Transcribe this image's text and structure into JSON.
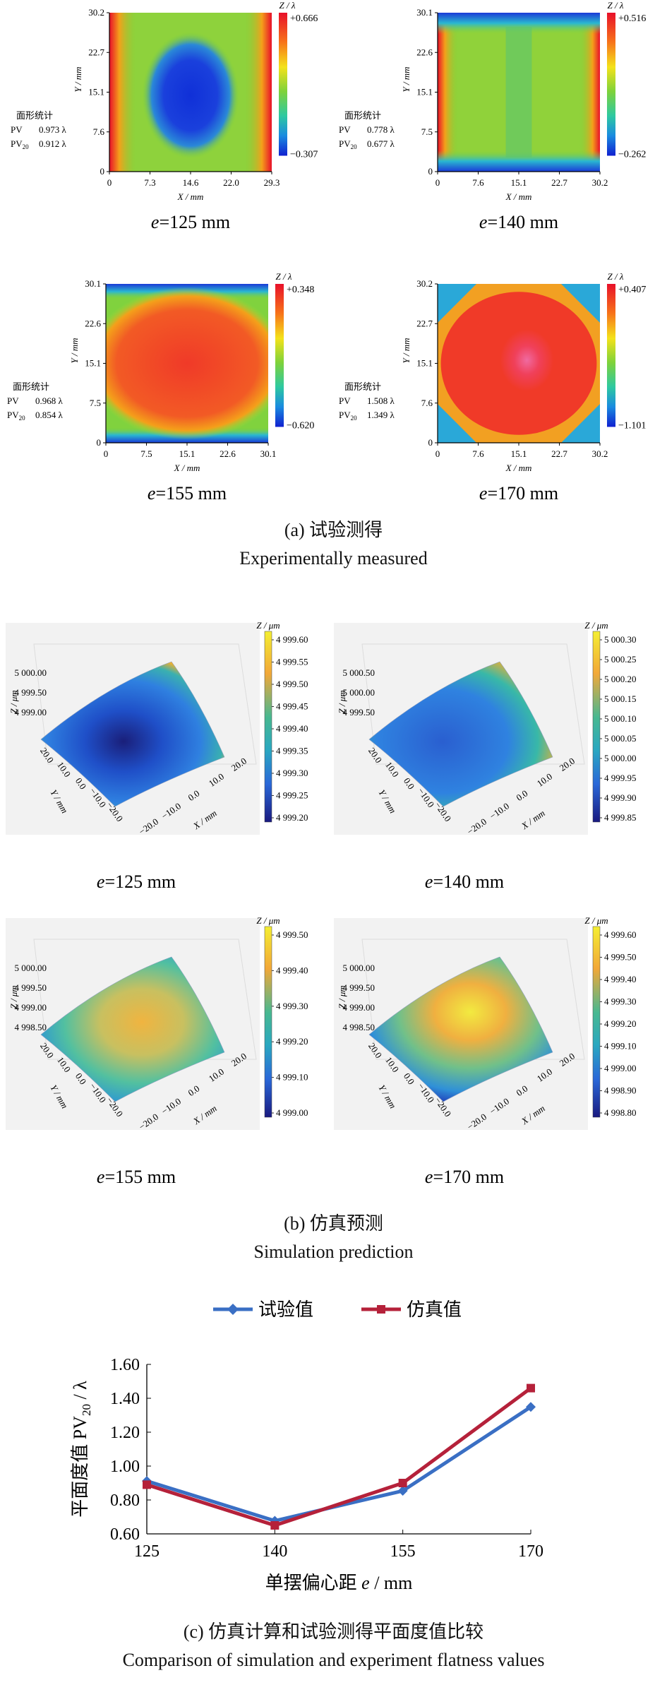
{
  "section_a": {
    "caption_zh": "(a) 试验测得",
    "caption_en": "Experimentally measured",
    "zlabel": "Z / λ",
    "xlabel": "X / mm",
    "ylabel": "Y / mm",
    "stats_title": "面形统计",
    "maps": [
      {
        "e_label": "e=125 mm",
        "zmax": "+0.666",
        "zmin": "−0.307",
        "xticks": [
          "0",
          "7.3",
          "14.6",
          "22.0",
          "29.3"
        ],
        "yticks": [
          "0",
          "7.6",
          "15.1",
          "22.7",
          "30.2"
        ],
        "pv": "0.973 λ",
        "pv20": "0.912 λ",
        "pattern": "center-low"
      },
      {
        "e_label": "e=140 mm",
        "zmax": "+0.516",
        "zmin": "−0.262",
        "xticks": [
          "0",
          "7.6",
          "15.1",
          "22.7",
          "30.2"
        ],
        "yticks": [
          "0",
          "7.5",
          "15.1",
          "22.6",
          "30.1"
        ],
        "pv": "0.778 λ",
        "pv20": "0.677 λ",
        "pattern": "flat"
      },
      {
        "e_label": "e=155 mm",
        "zmax": "+0.348",
        "zmin": "−0.620",
        "xticks": [
          "0",
          "7.5",
          "15.1",
          "22.6",
          "30.1"
        ],
        "yticks": [
          "0",
          "7.5",
          "15.1",
          "22.6",
          "30.1"
        ],
        "pv": "0.968 λ",
        "pv20": "0.854 λ",
        "pattern": "center-high"
      },
      {
        "e_label": "e=170 mm",
        "zmax": "+0.407",
        "zmin": "−1.101",
        "xticks": [
          "0",
          "7.6",
          "15.1",
          "22.7",
          "30.2"
        ],
        "yticks": [
          "0",
          "7.6",
          "15.1",
          "22.7",
          "30.2"
        ],
        "pv": "1.508 λ",
        "pv20": "1.349 λ",
        "pattern": "center-peak"
      }
    ]
  },
  "section_b": {
    "caption_zh": "(b) 仿真预测",
    "caption_en": "Simulation prediction",
    "zlabel": "Z / μm",
    "xlabel": "X / mm",
    "ylabel": "Y / mm",
    "plots": [
      {
        "e_label": "e=125 mm",
        "cbar_ticks": [
          "4 999.60",
          "4 999.55",
          "4 999.50",
          "4 999.45",
          "4 999.40",
          "4 999.35",
          "4 999.30",
          "4 999.25",
          "4 999.20"
        ],
        "zticks": [
          "5 000.00",
          "4 999.50",
          "4 999.00"
        ],
        "xticks": [
          "−20.0",
          "−10.0",
          "0.0",
          "10.0",
          "20.0"
        ],
        "yticks": [
          "20.0",
          "10.0",
          "0.0",
          "−10.0",
          "−20.0"
        ],
        "surface": "saddle-low"
      },
      {
        "e_label": "e=140 mm",
        "cbar_ticks": [
          "5 000.30",
          "5 000.25",
          "5 000.20",
          "5 000.15",
          "5 000.10",
          "5 000.05",
          "5 000.00",
          "4 999.95",
          "4 999.90",
          "4 999.85"
        ],
        "zticks": [
          "5 000.50",
          "5 000.00",
          "4 999.50"
        ],
        "xticks": [
          "−20.0",
          "−10.0",
          "0.0",
          "10.0",
          "20.0"
        ],
        "yticks": [
          "20.0",
          "10.0",
          "0.0",
          "−10.0",
          "−20.0"
        ],
        "surface": "flat-low"
      },
      {
        "e_label": "e=155 mm",
        "cbar_ticks": [
          "4 999.50",
          "4 999.40",
          "4 999.30",
          "4 999.20",
          "4 999.10",
          "4 999.00"
        ],
        "zticks": [
          "5 000.00",
          "4 999.50",
          "4 999.00",
          "4 998.50"
        ],
        "xticks": [
          "−20.0",
          "−10.0",
          "0.0",
          "10.0",
          "20.0"
        ],
        "yticks": [
          "20.0",
          "10.0",
          "0.0",
          "−10.0",
          "−20.0"
        ],
        "surface": "mid"
      },
      {
        "e_label": "e=170 mm",
        "cbar_ticks": [
          "4 999.60",
          "4 999.50",
          "4 999.40",
          "4 999.30",
          "4 999.20",
          "4 999.10",
          "4 999.00",
          "4 998.90",
          "4 998.80"
        ],
        "zticks": [
          "5 000.00",
          "4 999.50",
          "4 999.00",
          "4 998.50"
        ],
        "xticks": [
          "−20.0",
          "−10.0",
          "0.0",
          "10.0",
          "20.0"
        ],
        "yticks": [
          "20.0",
          "10.0",
          "0.0",
          "−10.0",
          "−20.0"
        ],
        "surface": "dome"
      }
    ]
  },
  "section_c": {
    "caption_zh": "(c) 仿真计算和试验测得平面度值比较",
    "caption_en": "Comparison of simulation and experiment flatness values"
  },
  "chart_data": {
    "type": "line",
    "title": "",
    "xlabel": "单摆偏心距 e / mm",
    "ylabel": "平面度值 PV20 / λ",
    "categories": [
      "125",
      "140",
      "155",
      "170"
    ],
    "yticks": [
      "0.60",
      "0.80",
      "1.00",
      "1.20",
      "1.40",
      "1.60"
    ],
    "ylim": [
      0.6,
      1.6
    ],
    "legend_position": "top",
    "series": [
      {
        "name": "试验值",
        "values": [
          0.912,
          0.677,
          0.854,
          1.349
        ],
        "color": "#3a6fc4",
        "marker": "diamond"
      },
      {
        "name": "仿真值",
        "values": [
          0.89,
          0.65,
          0.9,
          1.46
        ],
        "color": "#b5213a",
        "marker": "square"
      }
    ]
  },
  "colors": {
    "accent_blue": "#3a6fc4",
    "accent_red": "#b5213a"
  }
}
